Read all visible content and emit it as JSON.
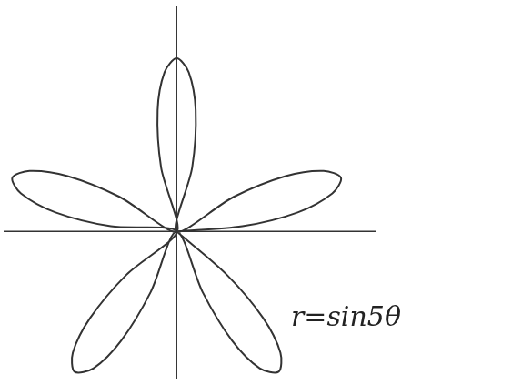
{
  "chart_data": {
    "type": "line",
    "annotation": "r=sin5θ",
    "x": [
      0,
      0.38,
      0.7,
      0.9,
      0.95,
      0.85,
      0.63,
      0.33,
      0,
      0.09,
      0.11,
      0.07,
      0,
      -0.07,
      -0.11,
      -0.09,
      0,
      -0.33,
      -0.63,
      -0.85,
      -0.95,
      -0.9,
      -0.7,
      -0.38,
      0,
      -0.29,
      -0.5,
      -0.6,
      -0.59,
      -0.48,
      -0.32,
      -0.15,
      0,
      0.15,
      0.32,
      0.48,
      0.59,
      0.6,
      0.5,
      0.29,
      0
    ],
    "values": [
      0,
      0.03,
      0.11,
      0.22,
      0.31,
      0.35,
      0.32,
      0.2,
      0,
      0.37,
      0.7,
      0.92,
      1,
      0.92,
      0.7,
      0.37,
      0,
      0.2,
      0.32,
      0.35,
      0.31,
      0.22,
      0.11,
      0.03,
      0,
      -0.25,
      -0.5,
      -0.7,
      -0.81,
      -0.79,
      -0.63,
      -0.35,
      0,
      -0.35,
      -0.63,
      -0.79,
      -0.81,
      -0.7,
      -0.5,
      -0.25,
      0
    ],
    "xlim": [
      -1,
      1.15
    ],
    "ylim": [
      -0.85,
      1.3
    ],
    "color": "#333333",
    "marker": "none",
    "grid": false,
    "tick_labels": false
  }
}
